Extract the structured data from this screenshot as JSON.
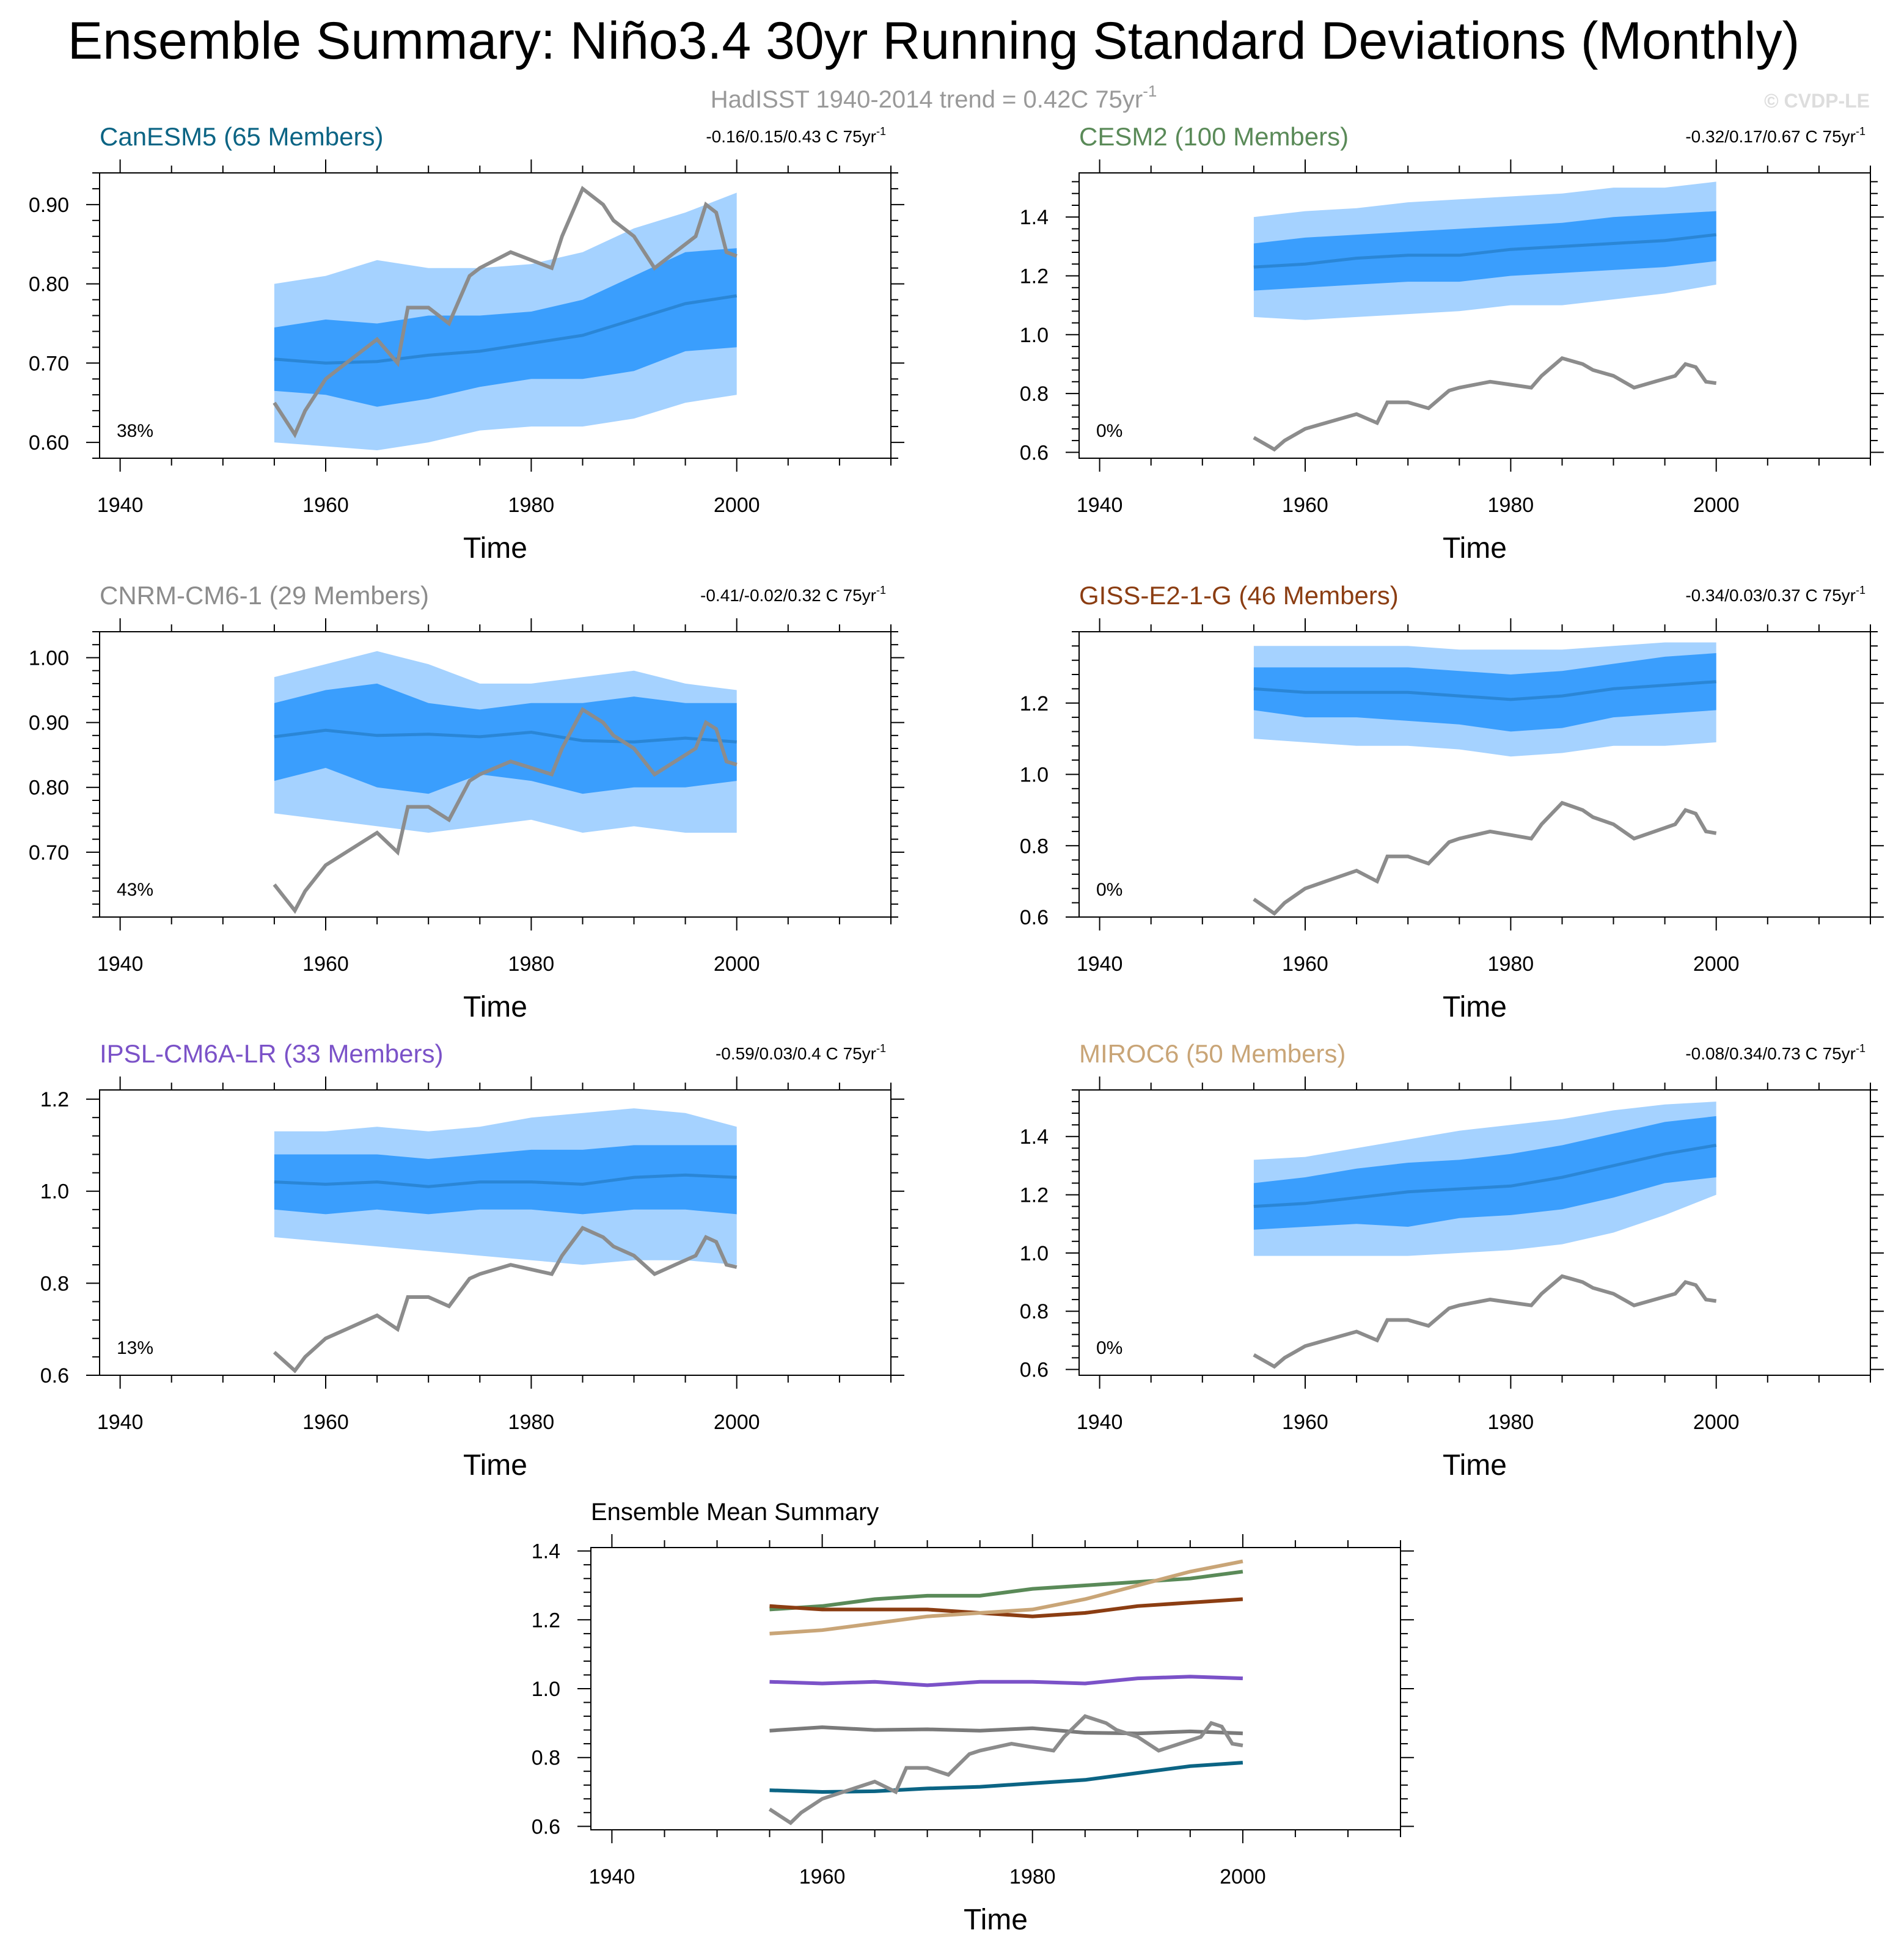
{
  "title": "Ensemble Summary: Niño3.4 30yr Running Standard Deviations (Monthly)",
  "subtitle": {
    "text": "HadISST 1940-2014 trend = 0.42C 75yr",
    "sup": "-1"
  },
  "watermark": "© CVDP-LE",
  "obs_color": "#8c8c8c",
  "band_outer_color": "#a5d2ff",
  "band_inner_color": "#3a9efd",
  "mean_line_color": "#2a86d6",
  "time_label": "Time",
  "chart_data": [
    {
      "type": "area",
      "title": "CanESM5 (65 Members)",
      "title_color": "#0b6484",
      "trend": {
        "text": "-0.16/0.15/0.43 C 75yr",
        "sup": "-1"
      },
      "percent": "38%",
      "xlabel": "Time",
      "xlim": [
        1938,
        2015
      ],
      "ylim": [
        0.58,
        0.94
      ],
      "yticks": [
        0.6,
        0.7,
        0.8,
        0.9
      ],
      "ytick_labels": [
        "0.60",
        "0.70",
        "0.80",
        "0.90"
      ],
      "xticks": [
        1940,
        1960,
        1980,
        2000
      ],
      "x": [
        1955,
        1960,
        1965,
        1970,
        1975,
        1980,
        1985,
        1990,
        1995,
        2000
      ],
      "mean": [
        0.705,
        0.7,
        0.702,
        0.71,
        0.715,
        0.725,
        0.735,
        0.755,
        0.775,
        0.785
      ],
      "inner_low": [
        0.665,
        0.66,
        0.645,
        0.655,
        0.67,
        0.68,
        0.68,
        0.69,
        0.715,
        0.72
      ],
      "inner_high": [
        0.745,
        0.755,
        0.75,
        0.76,
        0.76,
        0.765,
        0.78,
        0.81,
        0.84,
        0.845
      ],
      "outer_low": [
        0.6,
        0.595,
        0.59,
        0.6,
        0.615,
        0.62,
        0.62,
        0.63,
        0.65,
        0.66
      ],
      "outer_high": [
        0.8,
        0.81,
        0.83,
        0.82,
        0.82,
        0.825,
        0.84,
        0.87,
        0.89,
        0.915
      ]
    },
    {
      "type": "area",
      "title": "CESM2 (100 Members)",
      "title_color": "#5a8a58",
      "trend": {
        "text": "-0.32/0.17/0.67 C 75yr",
        "sup": "-1"
      },
      "percent": "0%",
      "xlabel": "Time",
      "xlim": [
        1938,
        2015
      ],
      "ylim": [
        0.58,
        1.55
      ],
      "yticks": [
        0.6,
        0.8,
        1.0,
        1.2,
        1.4
      ],
      "ytick_labels": [
        "0.6",
        "0.8",
        "1.0",
        "1.2",
        "1.4"
      ],
      "xticks": [
        1940,
        1960,
        1980,
        2000
      ],
      "x": [
        1955,
        1960,
        1965,
        1970,
        1975,
        1980,
        1985,
        1990,
        1995,
        2000
      ],
      "mean": [
        1.23,
        1.24,
        1.26,
        1.27,
        1.27,
        1.29,
        1.3,
        1.31,
        1.32,
        1.34
      ],
      "inner_low": [
        1.15,
        1.16,
        1.17,
        1.18,
        1.18,
        1.2,
        1.21,
        1.22,
        1.23,
        1.25
      ],
      "inner_high": [
        1.31,
        1.33,
        1.34,
        1.35,
        1.36,
        1.37,
        1.38,
        1.4,
        1.41,
        1.42
      ],
      "outer_low": [
        1.06,
        1.05,
        1.06,
        1.07,
        1.08,
        1.1,
        1.1,
        1.12,
        1.14,
        1.17
      ],
      "outer_high": [
        1.4,
        1.42,
        1.43,
        1.45,
        1.46,
        1.47,
        1.48,
        1.5,
        1.5,
        1.52
      ]
    },
    {
      "type": "area",
      "title": "CNRM-CM6-1 (29 Members)",
      "title_color": "#8c8c8c",
      "trend": {
        "text": "-0.41/-0.02/0.32 C 75yr",
        "sup": "-1"
      },
      "percent": "43%",
      "xlabel": "Time",
      "xlim": [
        1938,
        2015
      ],
      "ylim": [
        0.6,
        1.04
      ],
      "yticks": [
        0.7,
        0.8,
        0.9,
        1.0
      ],
      "ytick_labels": [
        "0.70",
        "0.80",
        "0.90",
        "1.00"
      ],
      "xticks": [
        1940,
        1960,
        1980,
        2000
      ],
      "x": [
        1955,
        1960,
        1965,
        1970,
        1975,
        1980,
        1985,
        1990,
        1995,
        2000
      ],
      "mean": [
        0.878,
        0.888,
        0.88,
        0.882,
        0.878,
        0.885,
        0.872,
        0.87,
        0.876,
        0.87
      ],
      "inner_low": [
        0.81,
        0.83,
        0.8,
        0.79,
        0.82,
        0.81,
        0.79,
        0.8,
        0.8,
        0.81
      ],
      "inner_high": [
        0.93,
        0.95,
        0.96,
        0.93,
        0.92,
        0.93,
        0.93,
        0.94,
        0.93,
        0.93
      ],
      "outer_low": [
        0.76,
        0.75,
        0.74,
        0.73,
        0.74,
        0.75,
        0.73,
        0.74,
        0.73,
        0.73
      ],
      "outer_high": [
        0.97,
        0.99,
        1.01,
        0.99,
        0.96,
        0.96,
        0.97,
        0.98,
        0.96,
        0.95
      ]
    },
    {
      "type": "area",
      "title": "GISS-E2-1-G (46 Members)",
      "title_color": "#8b3d12",
      "trend": {
        "text": "-0.34/0.03/0.37 C 75yr",
        "sup": "-1"
      },
      "percent": "0%",
      "xlabel": "Time",
      "xlim": [
        1938,
        2015
      ],
      "ylim": [
        0.6,
        1.4
      ],
      "yticks": [
        0.6,
        0.8,
        1.0,
        1.2
      ],
      "ytick_labels": [
        "0.6",
        "0.8",
        "1.0",
        "1.2"
      ],
      "xticks": [
        1940,
        1960,
        1980,
        2000
      ],
      "x": [
        1955,
        1960,
        1965,
        1970,
        1975,
        1980,
        1985,
        1990,
        1995,
        2000
      ],
      "mean": [
        1.24,
        1.23,
        1.23,
        1.23,
        1.22,
        1.21,
        1.22,
        1.24,
        1.25,
        1.26
      ],
      "inner_low": [
        1.18,
        1.16,
        1.16,
        1.15,
        1.14,
        1.12,
        1.13,
        1.16,
        1.17,
        1.18
      ],
      "inner_high": [
        1.3,
        1.3,
        1.3,
        1.3,
        1.29,
        1.28,
        1.29,
        1.31,
        1.33,
        1.34
      ],
      "outer_low": [
        1.1,
        1.09,
        1.08,
        1.08,
        1.07,
        1.05,
        1.06,
        1.08,
        1.08,
        1.09
      ],
      "outer_high": [
        1.36,
        1.36,
        1.36,
        1.36,
        1.35,
        1.35,
        1.35,
        1.36,
        1.37,
        1.37
      ]
    },
    {
      "type": "area",
      "title": "IPSL-CM6A-LR (33 Members)",
      "title_color": "#7b52c8",
      "trend": {
        "text": "-0.59/0.03/0.4 C 75yr",
        "sup": "-1"
      },
      "percent": "13%",
      "xlabel": "Time",
      "xlim": [
        1938,
        2015
      ],
      "ylim": [
        0.6,
        1.22
      ],
      "yticks": [
        0.6,
        0.8,
        1.0,
        1.2
      ],
      "ytick_labels": [
        "0.6",
        "0.8",
        "1.0",
        "1.2"
      ],
      "xticks": [
        1940,
        1960,
        1980,
        2000
      ],
      "x": [
        1955,
        1960,
        1965,
        1970,
        1975,
        1980,
        1985,
        1990,
        1995,
        2000
      ],
      "mean": [
        1.02,
        1.015,
        1.02,
        1.01,
        1.02,
        1.02,
        1.015,
        1.03,
        1.035,
        1.03
      ],
      "inner_low": [
        0.96,
        0.95,
        0.96,
        0.95,
        0.96,
        0.96,
        0.95,
        0.96,
        0.96,
        0.95
      ],
      "inner_high": [
        1.08,
        1.08,
        1.08,
        1.07,
        1.08,
        1.09,
        1.09,
        1.1,
        1.1,
        1.1
      ],
      "outer_low": [
        0.9,
        0.89,
        0.88,
        0.87,
        0.86,
        0.85,
        0.84,
        0.85,
        0.85,
        0.84
      ],
      "outer_high": [
        1.13,
        1.13,
        1.14,
        1.13,
        1.14,
        1.16,
        1.17,
        1.18,
        1.17,
        1.14
      ]
    },
    {
      "type": "area",
      "title": "MIROC6 (50 Members)",
      "title_color": "#c9a577",
      "trend": {
        "text": "-0.08/0.34/0.73 C 75yr",
        "sup": "-1"
      },
      "percent": "0%",
      "xlabel": "Time",
      "xlim": [
        1938,
        2015
      ],
      "ylim": [
        0.58,
        1.56
      ],
      "yticks": [
        0.6,
        0.8,
        1.0,
        1.2,
        1.4
      ],
      "ytick_labels": [
        "0.6",
        "0.8",
        "1.0",
        "1.2",
        "1.4"
      ],
      "xticks": [
        1940,
        1960,
        1980,
        2000
      ],
      "x": [
        1955,
        1960,
        1965,
        1970,
        1975,
        1980,
        1985,
        1990,
        1995,
        2000
      ],
      "mean": [
        1.16,
        1.17,
        1.19,
        1.21,
        1.22,
        1.23,
        1.26,
        1.3,
        1.34,
        1.37
      ],
      "inner_low": [
        1.08,
        1.09,
        1.1,
        1.09,
        1.12,
        1.13,
        1.15,
        1.19,
        1.24,
        1.26
      ],
      "inner_high": [
        1.24,
        1.26,
        1.29,
        1.31,
        1.32,
        1.34,
        1.37,
        1.41,
        1.45,
        1.47
      ],
      "outer_low": [
        0.99,
        0.99,
        0.99,
        0.99,
        1.0,
        1.01,
        1.03,
        1.07,
        1.13,
        1.2
      ],
      "outer_high": [
        1.32,
        1.33,
        1.36,
        1.39,
        1.42,
        1.44,
        1.46,
        1.49,
        1.51,
        1.52
      ]
    },
    {
      "type": "line",
      "title": "Ensemble Mean Summary",
      "xlabel": "Time",
      "xlim": [
        1938,
        2015
      ],
      "ylim": [
        0.59,
        1.41
      ],
      "yticks": [
        0.6,
        0.8,
        1.0,
        1.2,
        1.4
      ],
      "ytick_labels": [
        "0.6",
        "0.8",
        "1.0",
        "1.2",
        "1.4"
      ],
      "xticks": [
        1940,
        1960,
        1980,
        2000
      ],
      "x": [
        1955,
        1960,
        1965,
        1970,
        1975,
        1980,
        1985,
        1990,
        1995,
        2000
      ],
      "series": [
        {
          "name": "CanESM5",
          "color": "#0b6484",
          "values": [
            0.705,
            0.7,
            0.702,
            0.71,
            0.715,
            0.725,
            0.735,
            0.755,
            0.775,
            0.785
          ]
        },
        {
          "name": "CESM2",
          "color": "#5a8a58",
          "values": [
            1.23,
            1.24,
            1.26,
            1.27,
            1.27,
            1.29,
            1.3,
            1.31,
            1.32,
            1.34
          ]
        },
        {
          "name": "CNRM-CM6-1",
          "color": "#7a7a7a",
          "values": [
            0.878,
            0.888,
            0.88,
            0.882,
            0.878,
            0.885,
            0.872,
            0.87,
            0.876,
            0.87
          ]
        },
        {
          "name": "GISS-E2-1-G",
          "color": "#8b3d12",
          "values": [
            1.24,
            1.23,
            1.23,
            1.23,
            1.22,
            1.21,
            1.22,
            1.24,
            1.25,
            1.26
          ]
        },
        {
          "name": "IPSL-CM6A-LR",
          "color": "#7b52c8",
          "values": [
            1.02,
            1.015,
            1.02,
            1.01,
            1.02,
            1.02,
            1.015,
            1.03,
            1.035,
            1.03
          ]
        },
        {
          "name": "MIROC6",
          "color": "#c9a577",
          "values": [
            1.16,
            1.17,
            1.19,
            1.21,
            1.22,
            1.23,
            1.26,
            1.3,
            1.34,
            1.37
          ]
        }
      ]
    }
  ],
  "observed": {
    "name": "HadISST",
    "x": [
      1955,
      1956,
      1957,
      1958,
      1959,
      1960,
      1962,
      1965,
      1967,
      1968,
      1970,
      1972,
      1974,
      1975,
      1978,
      1980,
      1982,
      1983,
      1984,
      1985,
      1986,
      1987,
      1988,
      1990,
      1992,
      1994,
      1996,
      1997,
      1998,
      1999,
      2000
    ],
    "values": [
      0.65,
      0.63,
      0.61,
      0.64,
      0.66,
      0.68,
      0.7,
      0.73,
      0.7,
      0.77,
      0.77,
      0.75,
      0.81,
      0.82,
      0.84,
      0.83,
      0.82,
      0.86,
      0.89,
      0.92,
      0.91,
      0.9,
      0.88,
      0.86,
      0.82,
      0.84,
      0.86,
      0.9,
      0.89,
      0.84,
      0.835
    ]
  }
}
